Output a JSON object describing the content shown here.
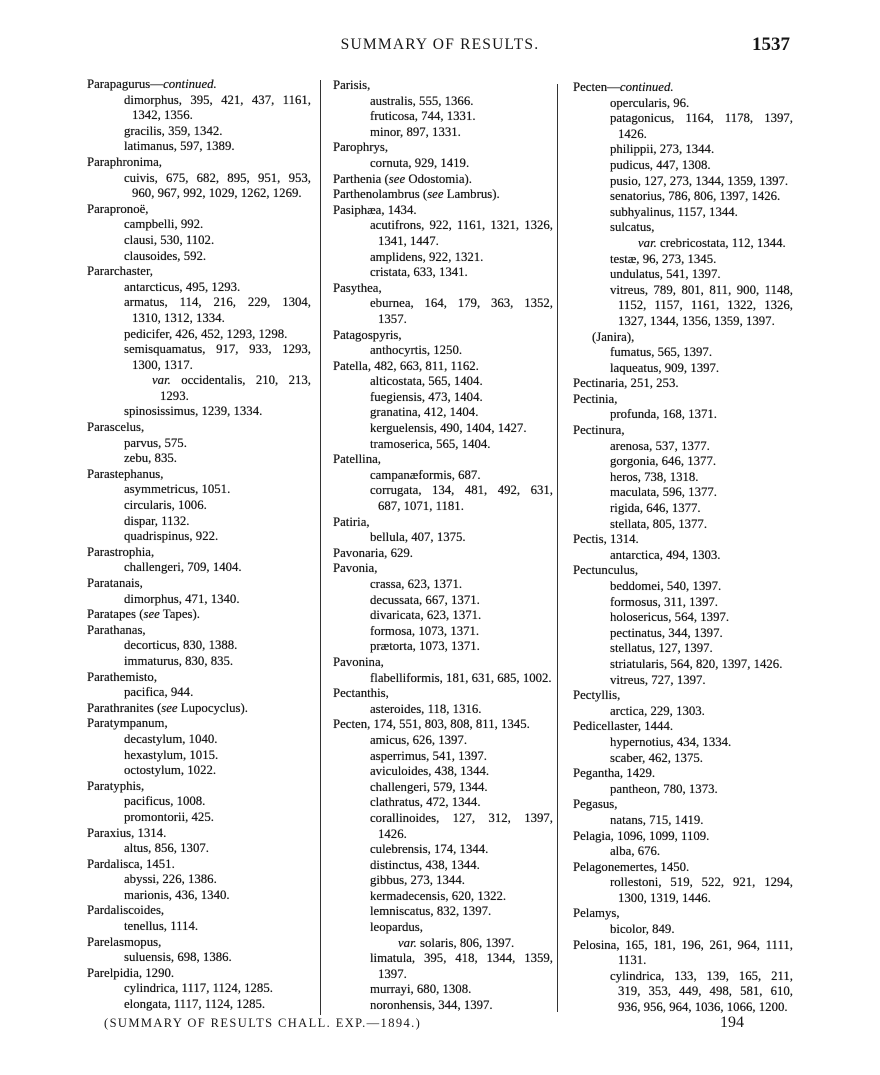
{
  "header": {
    "title": "SUMMARY OF RESULTS.",
    "page_number": "1537"
  },
  "footer": {
    "note": "(SUMMARY OF RESULTS CHALL. EXP.—1894.)",
    "signature": "194"
  },
  "columns": [
    {
      "lines": [
        {
          "k": "h",
          "t": "Parapagurus—",
          "i": "continued."
        },
        {
          "k": "s",
          "t": "dimorphus, 395, 421, 437, 1161,"
        },
        {
          "k": "c",
          "t": "1342, 1356."
        },
        {
          "k": "s",
          "t": "gracilis, 359, 1342."
        },
        {
          "k": "s",
          "t": "latimanus, 597, 1389."
        },
        {
          "k": "h",
          "t": "Paraphronima,"
        },
        {
          "k": "s",
          "t": "cuivis, 675, 682, 895, 951, 953,"
        },
        {
          "k": "c",
          "t": "960, 967, 992, 1029, 1262, 1269."
        },
        {
          "k": "h",
          "t": "Parapronoë,"
        },
        {
          "k": "s",
          "t": "campbelli, 992."
        },
        {
          "k": "s",
          "t": "clausi, 530, 1102."
        },
        {
          "k": "s",
          "t": "clausoides, 592."
        },
        {
          "k": "h",
          "t": "Pararchaster,"
        },
        {
          "k": "s",
          "t": "antarcticus, 495, 1293."
        },
        {
          "k": "s",
          "t": "armatus, 114, 216, 229, 1304,"
        },
        {
          "k": "c",
          "t": "1310, 1312, 1334."
        },
        {
          "k": "s",
          "t": "pedicifer, 426, 452, 1293, 1298."
        },
        {
          "k": "s",
          "t": "semisquamatus, 917, 933, 1293,"
        },
        {
          "k": "c",
          "t": "1300, 1317."
        },
        {
          "k": "v",
          "t": "",
          "i": "var.",
          "a": " occidentalis, 210, 213,"
        },
        {
          "k": "vc",
          "t": "1293."
        },
        {
          "k": "s",
          "t": "spinosissimus, 1239, 1334."
        },
        {
          "k": "h",
          "t": "Parascelus,"
        },
        {
          "k": "s",
          "t": "parvus, 575."
        },
        {
          "k": "s",
          "t": "zebu, 835."
        },
        {
          "k": "h",
          "t": "Parastephanus,"
        },
        {
          "k": "s",
          "t": "asymmetricus, 1051."
        },
        {
          "k": "s",
          "t": "circularis, 1006."
        },
        {
          "k": "s",
          "t": "dispar, 1132."
        },
        {
          "k": "s",
          "t": "quadrispinus, 922."
        },
        {
          "k": "h",
          "t": "Parastrophia,"
        },
        {
          "k": "s",
          "t": "challengeri, 709, 1404."
        },
        {
          "k": "h",
          "t": "Paratanais,"
        },
        {
          "k": "s",
          "t": "dimorphus, 471, 1340."
        },
        {
          "k": "h",
          "t": "Paratapes (",
          "i": "see",
          "a": " Tapes)."
        },
        {
          "k": "h",
          "t": "Parathanas,"
        },
        {
          "k": "s",
          "t": "decorticus, 830, 1388."
        },
        {
          "k": "s",
          "t": "immaturus, 830, 835."
        },
        {
          "k": "h",
          "t": "Parathemisto,"
        },
        {
          "k": "s",
          "t": "pacifica, 944."
        },
        {
          "k": "h",
          "t": "Parathranites (",
          "i": "see",
          "a": " Lupocyclus)."
        },
        {
          "k": "h",
          "t": "Paratympanum,"
        },
        {
          "k": "s",
          "t": "decastylum, 1040."
        },
        {
          "k": "s",
          "t": "hexastylum, 1015."
        },
        {
          "k": "s",
          "t": "octostylum, 1022."
        },
        {
          "k": "h",
          "t": "Paratyphis,"
        },
        {
          "k": "s",
          "t": "pacificus, 1008."
        },
        {
          "k": "s",
          "t": "promontorii, 425."
        },
        {
          "k": "h",
          "t": "Paraxius, 1314."
        },
        {
          "k": "s",
          "t": "altus, 856, 1307."
        },
        {
          "k": "h",
          "t": "Pardalisca, 1451."
        },
        {
          "k": "s",
          "t": "abyssi, 226, 1386."
        },
        {
          "k": "s",
          "t": "marionis, 436, 1340."
        },
        {
          "k": "h",
          "t": "Pardaliscoides,"
        },
        {
          "k": "s",
          "t": "tenellus, 1114."
        },
        {
          "k": "h",
          "t": "Parelasmopus,"
        },
        {
          "k": "s",
          "t": "suluensis, 698, 1386."
        },
        {
          "k": "h",
          "t": "Parelpidia, 1290."
        },
        {
          "k": "s",
          "t": "cylindrica, 1117, 1124, 1285."
        },
        {
          "k": "s",
          "t": "elongata, 1117, 1124, 1285."
        }
      ]
    },
    {
      "lines": [
        {
          "k": "h",
          "t": "Parisis,"
        },
        {
          "k": "s",
          "t": "australis, 555, 1366."
        },
        {
          "k": "s",
          "t": "fruticosa, 744, 1331."
        },
        {
          "k": "s",
          "t": "minor, 897, 1331."
        },
        {
          "k": "h",
          "t": "Parophrys,"
        },
        {
          "k": "s",
          "t": "cornuta, 929, 1419."
        },
        {
          "k": "h",
          "t": "Parthenia (",
          "i": "see",
          "a": " Odostomia)."
        },
        {
          "k": "h",
          "t": "Parthenolambrus (",
          "i": "see",
          "a": " Lambrus)."
        },
        {
          "k": "h",
          "t": "Pasiphæa, 1434."
        },
        {
          "k": "s",
          "t": "acutifrons, 922, 1161, 1321, 1326,"
        },
        {
          "k": "c",
          "t": "1341, 1447."
        },
        {
          "k": "s",
          "t": "amplidens, 922, 1321."
        },
        {
          "k": "s",
          "t": "cristata, 633, 1341."
        },
        {
          "k": "h",
          "t": "Pasythea,"
        },
        {
          "k": "s",
          "t": "eburnea, 164, 179, 363, 1352,"
        },
        {
          "k": "c",
          "t": "1357."
        },
        {
          "k": "h",
          "t": "Patagospyris,"
        },
        {
          "k": "s",
          "t": "anthocyrtis, 1250."
        },
        {
          "k": "h",
          "t": "Patella, 482, 663, 811, 1162."
        },
        {
          "k": "s",
          "t": "alticostata, 565, 1404."
        },
        {
          "k": "s",
          "t": "fuegiensis, 473, 1404."
        },
        {
          "k": "s",
          "t": "granatina, 412, 1404."
        },
        {
          "k": "s",
          "t": "kerguelensis, 490, 1404, 1427."
        },
        {
          "k": "s",
          "t": "tramoserica, 565, 1404."
        },
        {
          "k": "h",
          "t": "Patellina,"
        },
        {
          "k": "s",
          "t": "campanæformis, 687."
        },
        {
          "k": "s",
          "t": "corrugata, 134, 481, 492, 631,"
        },
        {
          "k": "c",
          "t": "687, 1071, 1181."
        },
        {
          "k": "h",
          "t": "Patiria,"
        },
        {
          "k": "s",
          "t": "bellula, 407, 1375."
        },
        {
          "k": "h",
          "t": "Pavonaria, 629."
        },
        {
          "k": "h",
          "t": "Pavonia,"
        },
        {
          "k": "s",
          "t": "crassa, 623, 1371."
        },
        {
          "k": "s",
          "t": "decussata, 667, 1371."
        },
        {
          "k": "s",
          "t": "divaricata, 623, 1371."
        },
        {
          "k": "s",
          "t": "formosa, 1073, 1371."
        },
        {
          "k": "s",
          "t": "prætorta, 1073, 1371."
        },
        {
          "k": "h",
          "t": "Pavonina,"
        },
        {
          "k": "s",
          "t": "flabelliformis, 181, 631, 685, 1002."
        },
        {
          "k": "h",
          "t": "Pectanthis,"
        },
        {
          "k": "s",
          "t": "asteroides, 118, 1316."
        },
        {
          "k": "h",
          "t": "Pecten, 174, 551, 803, 808, 811, 1345."
        },
        {
          "k": "s",
          "t": "amicus, 626, 1397."
        },
        {
          "k": "s",
          "t": "asperrimus, 541, 1397."
        },
        {
          "k": "s",
          "t": "aviculoides, 438, 1344."
        },
        {
          "k": "s",
          "t": "challengeri, 579, 1344."
        },
        {
          "k": "s",
          "t": "clathratus, 472, 1344."
        },
        {
          "k": "s",
          "t": "corallinoides, 127, 312, 1397,"
        },
        {
          "k": "c",
          "t": "1426."
        },
        {
          "k": "s",
          "t": "culebrensis, 174, 1344."
        },
        {
          "k": "s",
          "t": "distinctus, 438, 1344."
        },
        {
          "k": "s",
          "t": "gibbus, 273, 1344."
        },
        {
          "k": "s",
          "t": "kermadecensis, 620, 1322."
        },
        {
          "k": "s",
          "t": "lemniscatus, 832, 1397."
        },
        {
          "k": "s",
          "t": "leopardus,"
        },
        {
          "k": "v",
          "t": "",
          "i": "var.",
          "a": " solaris, 806, 1397."
        },
        {
          "k": "s",
          "t": "limatula, 395, 418, 1344, 1359,"
        },
        {
          "k": "c",
          "t": "1397."
        },
        {
          "k": "s",
          "t": "murrayi, 680, 1308."
        },
        {
          "k": "s",
          "t": "noronhensis, 344, 1397."
        }
      ]
    },
    {
      "lines": [
        {
          "k": "h",
          "t": "Pecten—",
          "i": "continued."
        },
        {
          "k": "s",
          "t": "opercularis, 96."
        },
        {
          "k": "s",
          "t": "patagonicus, 1164, 1178, 1397,"
        },
        {
          "k": "c",
          "t": "1426."
        },
        {
          "k": "s",
          "t": "philippii, 273, 1344."
        },
        {
          "k": "s",
          "t": "pudicus, 447, 1308."
        },
        {
          "k": "s",
          "t": "pusio, 127, 273, 1344, 1359, 1397."
        },
        {
          "k": "s",
          "t": "senatorius, 786, 806, 1397, 1426."
        },
        {
          "k": "s",
          "t": "subhyalinus, 1157, 1344."
        },
        {
          "k": "s",
          "t": "sulcatus,"
        },
        {
          "k": "v",
          "t": "",
          "i": "var.",
          "a": " crebricostata, 112, 1344."
        },
        {
          "k": "s",
          "t": "testæ, 96, 273, 1345."
        },
        {
          "k": "s",
          "t": "undulatus, 541, 1397."
        },
        {
          "k": "s",
          "t": "vitreus, 789, 801, 811, 900, 1148,"
        },
        {
          "k": "c",
          "t": "1152, 1157, 1161, 1322, 1326,"
        },
        {
          "k": "c",
          "t": "1327, 1344, 1356, 1359, 1397."
        },
        {
          "k": "g",
          "t": "(Janira),"
        },
        {
          "k": "s",
          "t": "fumatus, 565, 1397."
        },
        {
          "k": "s",
          "t": "laqueatus, 909, 1397."
        },
        {
          "k": "h",
          "t": "Pectinaria, 251, 253."
        },
        {
          "k": "h",
          "t": "Pectinia,"
        },
        {
          "k": "s",
          "t": "profunda, 168, 1371."
        },
        {
          "k": "h",
          "t": "Pectinura,"
        },
        {
          "k": "s",
          "t": "arenosa, 537, 1377."
        },
        {
          "k": "s",
          "t": "gorgonia, 646, 1377."
        },
        {
          "k": "s",
          "t": "heros, 738, 1318."
        },
        {
          "k": "s",
          "t": "maculata, 596, 1377."
        },
        {
          "k": "s",
          "t": "rigida, 646, 1377."
        },
        {
          "k": "s",
          "t": "stellata, 805, 1377."
        },
        {
          "k": "h",
          "t": "Pectis, 1314."
        },
        {
          "k": "s",
          "t": "antarctica, 494, 1303."
        },
        {
          "k": "h",
          "t": "Pectunculus,"
        },
        {
          "k": "s",
          "t": "beddomei, 540, 1397."
        },
        {
          "k": "s",
          "t": "formosus, 311, 1397."
        },
        {
          "k": "s",
          "t": "holosericus, 564, 1397."
        },
        {
          "k": "s",
          "t": "pectinatus, 344, 1397."
        },
        {
          "k": "s",
          "t": "stellatus, 127, 1397."
        },
        {
          "k": "s",
          "t": "striatularis, 564, 820, 1397, 1426."
        },
        {
          "k": "s",
          "t": "vitreus, 727, 1397."
        },
        {
          "k": "h",
          "t": "Pectyllis,"
        },
        {
          "k": "s",
          "t": "arctica, 229, 1303."
        },
        {
          "k": "h",
          "t": "Pedicellaster, 1444."
        },
        {
          "k": "s",
          "t": "hypernotius, 434, 1334."
        },
        {
          "k": "s",
          "t": "scaber, 462, 1375."
        },
        {
          "k": "h",
          "t": "Pegantha, 1429."
        },
        {
          "k": "s",
          "t": "pantheon, 780, 1373."
        },
        {
          "k": "h",
          "t": "Pegasus,"
        },
        {
          "k": "s",
          "t": "natans, 715, 1419."
        },
        {
          "k": "h",
          "t": "Pelagia, 1096, 1099, 1109."
        },
        {
          "k": "s",
          "t": "alba, 676."
        },
        {
          "k": "h",
          "t": "Pelagonemertes, 1450."
        },
        {
          "k": "s",
          "t": "rollestoni, 519, 522, 921, 1294,"
        },
        {
          "k": "c",
          "t": "1300, 1319, 1446."
        },
        {
          "k": "h",
          "t": "Pelamys,"
        },
        {
          "k": "s",
          "t": "bicolor, 849."
        },
        {
          "k": "h",
          "t": "Pelosina, 165, 181, 196, 261, 964, 1111,"
        },
        {
          "k": "c",
          "t": "1131."
        },
        {
          "k": "s",
          "t": "cylindrica, 133, 139, 165, 211,"
        },
        {
          "k": "c",
          "t": "319, 353, 449, 498, 581, 610,"
        },
        {
          "k": "c",
          "t": "936, 956, 964, 1036, 1066, 1200."
        }
      ]
    }
  ]
}
